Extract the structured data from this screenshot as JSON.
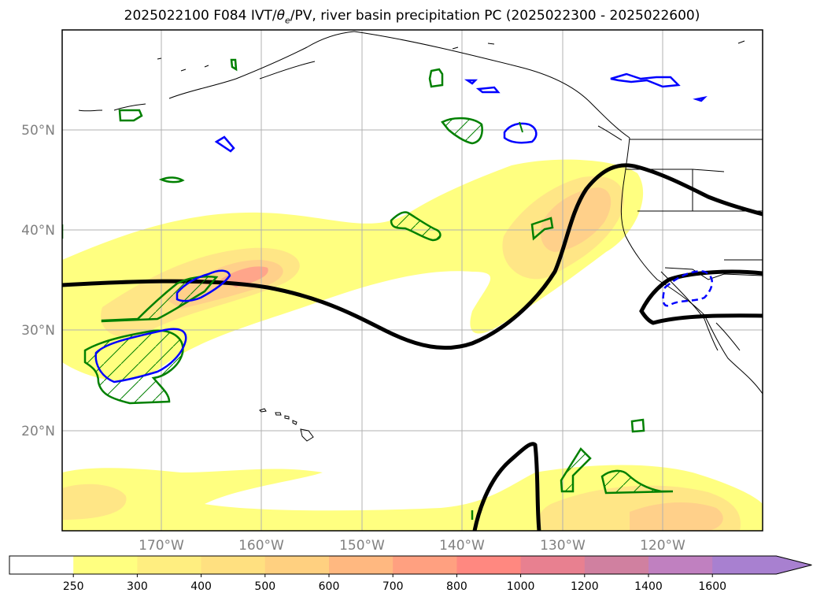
{
  "title": "2025022100 F084 IVT/θe/PV, river basin precipitation PC (2025022300 - 2025022600)",
  "title_parts": {
    "prefix": "2025022100 F084 IVT/",
    "theta": "θ",
    "sub": "e",
    "suffix": "/PV, river basin precipitation PC (2025022300 - 2025022600)"
  },
  "map": {
    "lon_range": [
      -180,
      -110
    ],
    "lat_range": [
      10,
      60
    ],
    "gridlines": true,
    "lat_labels": [
      "50°N",
      "40°N",
      "30°N",
      "20°N"
    ],
    "lon_labels": [
      "170°W",
      "160°W",
      "150°W",
      "140°W",
      "130°W",
      "120°W"
    ]
  },
  "colorbar": {
    "ticks": [
      "250",
      "300",
      "400",
      "500",
      "600",
      "700",
      "800",
      "1000",
      "1200",
      "1400",
      "1600"
    ],
    "colors": [
      "#ffffff",
      "#ffff80",
      "#ffee80",
      "#ffe080",
      "#ffd080",
      "#ffb880",
      "#ffa080",
      "#ff8880",
      "#e88090",
      "#d080a0",
      "#c080c0",
      "#a880d0"
    ],
    "extend": "max"
  },
  "layers": {
    "ivt_fill": "yellow-orange-pink shaded IVT",
    "pv_contour_color": "#000000",
    "precip_pc_colors": [
      "#008000",
      "#0000ff"
    ]
  }
}
